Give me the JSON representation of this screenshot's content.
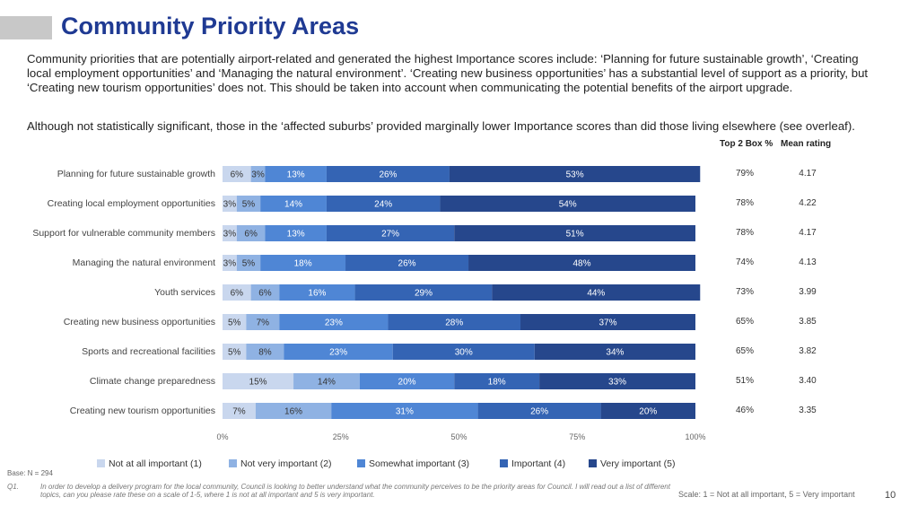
{
  "page": {
    "title": "Community Priority Areas",
    "para1": "Community priorities that are potentially airport-related and generated the highest Importance scores include:  ‘Planning for future sustainable growth’, ‘Creating local employment opportunities’ and ‘Managing the natural environment’. ‘Creating new business opportunities’ has a substantial level of support as a priority, but ‘Creating new tourism opportunities’ does not. This should be taken into account when communicating the potential benefits of the airport upgrade.",
    "para2": "Although not statistically significant, those in the ‘affected suburbs’ provided marginally lower Importance scores than did those living elsewhere (see overleaf).",
    "col_top2": "Top 2 Box %",
    "col_mean": "Mean rating",
    "base": "Base: N = 294",
    "q_label": "Q1.",
    "q_text": "In order to develop a delivery program for the local community, Council is looking to better understand what the community perceives to be the priority areas for Council. I will read out a list of different topics, can you please rate these on a scale of 1-5, where 1 is not at all important and 5 is very important.",
    "scale": "Scale: 1 = Not at all important, 5 = Very important",
    "page_number": "10"
  },
  "chart_data": {
    "type": "bar",
    "orientation": "horizontal",
    "stacked": true,
    "categories": [
      "Planning for future sustainable growth",
      "Creating local employment opportunities",
      "Support for vulnerable community members",
      "Managing the natural environment",
      "Youth services",
      "Creating new business opportunities",
      "Sports and recreational facilities",
      "Climate change preparedness",
      "Creating new tourism opportunities"
    ],
    "series": [
      {
        "name": "Not at all important (1)",
        "color": "#c9d7ee",
        "values": [
          6,
          3,
          3,
          3,
          6,
          5,
          5,
          15,
          7
        ]
      },
      {
        "name": "Not very important (2)",
        "color": "#8fb2e3",
        "values": [
          3,
          5,
          6,
          5,
          6,
          7,
          8,
          14,
          16
        ]
      },
      {
        "name": "Somewhat important (3)",
        "color": "#4f86d5",
        "values": [
          13,
          14,
          13,
          18,
          16,
          23,
          23,
          20,
          31
        ]
      },
      {
        "name": "Important (4)",
        "color": "#3464b4",
        "values": [
          26,
          24,
          27,
          26,
          29,
          28,
          30,
          18,
          26
        ]
      },
      {
        "name": "Very important (5)",
        "color": "#26478c",
        "values": [
          53,
          54,
          51,
          48,
          44,
          37,
          34,
          33,
          20
        ]
      }
    ],
    "top2_box": [
      "79%",
      "78%",
      "78%",
      "74%",
      "73%",
      "65%",
      "65%",
      "51%",
      "46%"
    ],
    "mean_rating": [
      "4.17",
      "4.22",
      "4.17",
      "4.13",
      "3.99",
      "3.85",
      "3.82",
      "3.40",
      "3.35"
    ],
    "x_ticks": [
      "0%",
      "25%",
      "50%",
      "75%",
      "100%"
    ],
    "xlim": [
      0,
      100
    ],
    "legend_position": "bottom",
    "grid": false
  }
}
